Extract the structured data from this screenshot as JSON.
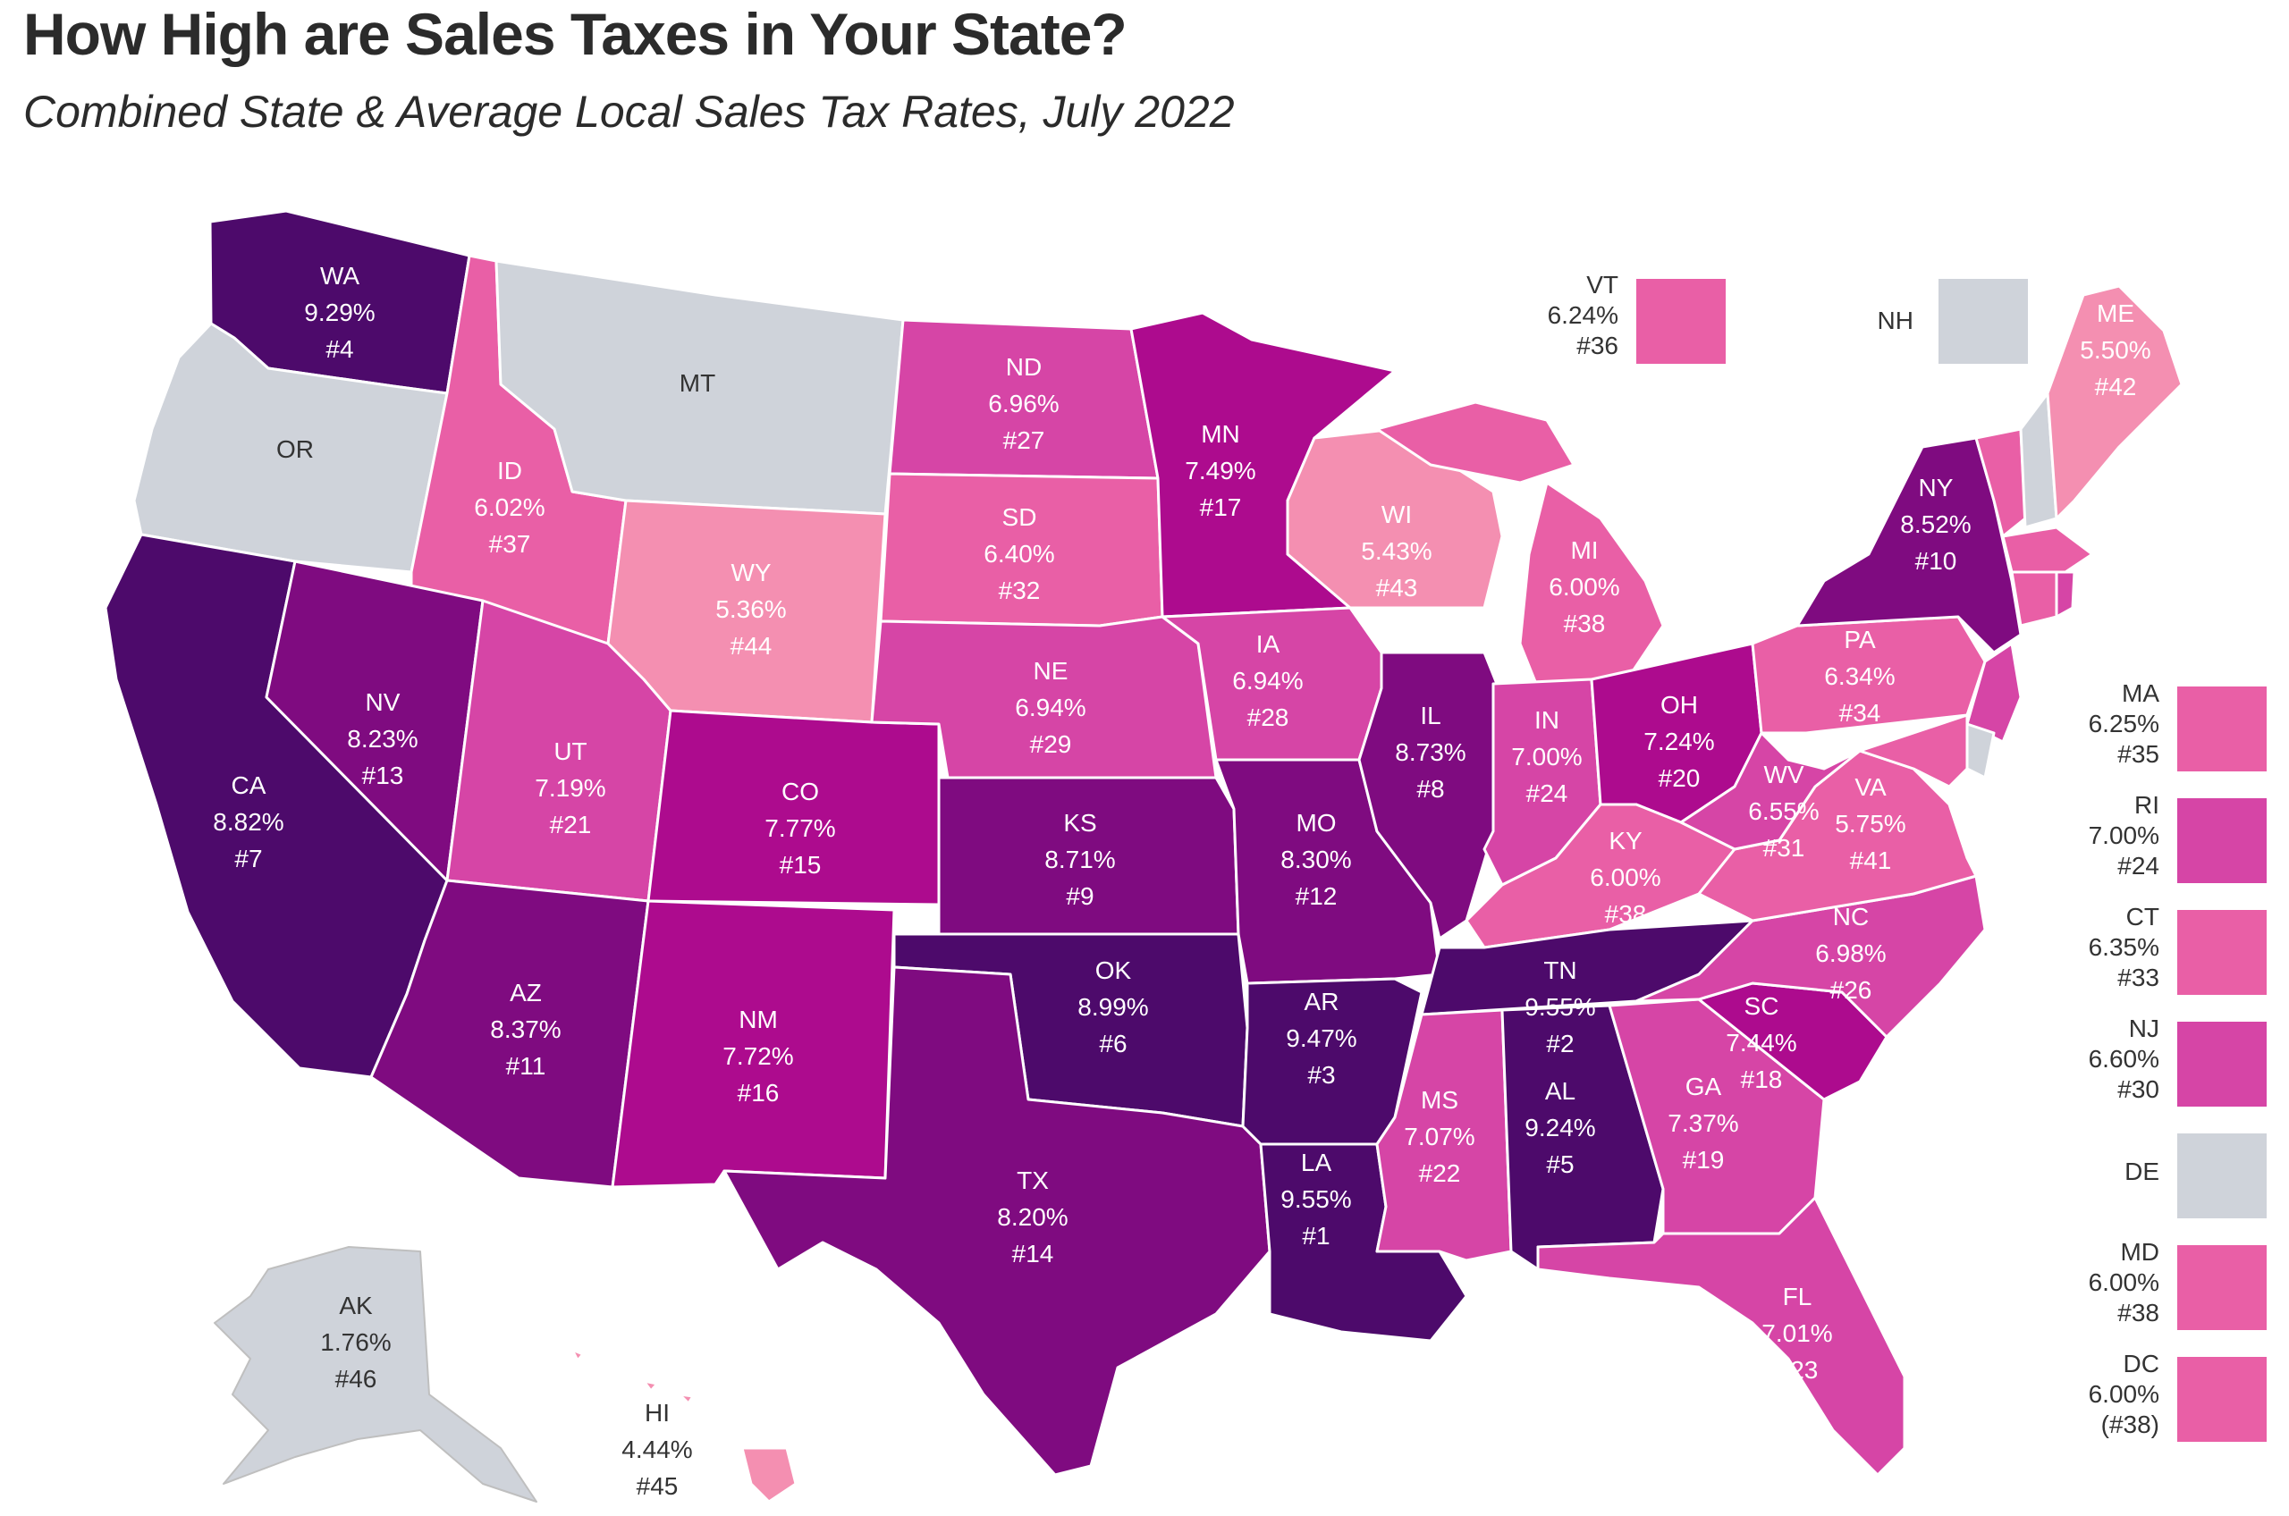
{
  "title": "How High are Sales Taxes in Your State?",
  "subtitle": "Combined State & Average Local Sales Tax Rates, July 2022",
  "colors": {
    "none": "#cfd3da",
    "c1": "#f48fb1",
    "c2": "#e95fa6",
    "c3": "#d645a6",
    "c4": "#ad0b8e",
    "c5": "#7f0b80",
    "c6": "#4d0a6b"
  },
  "states": [
    {
      "id": "WA",
      "name": "WA",
      "rate": "9.29%",
      "rank": "#4",
      "level": "c6"
    },
    {
      "id": "OR",
      "name": "OR",
      "rate": "",
      "rank": "",
      "level": "none"
    },
    {
      "id": "CA",
      "name": "CA",
      "rate": "8.82%",
      "rank": "#7",
      "level": "c6"
    },
    {
      "id": "ID",
      "name": "ID",
      "rate": "6.02%",
      "rank": "#37",
      "level": "c2"
    },
    {
      "id": "NV",
      "name": "NV",
      "rate": "8.23%",
      "rank": "#13",
      "level": "c5"
    },
    {
      "id": "MT",
      "name": "MT",
      "rate": "",
      "rank": "",
      "level": "none"
    },
    {
      "id": "WY",
      "name": "WY",
      "rate": "5.36%",
      "rank": "#44",
      "level": "c1"
    },
    {
      "id": "UT",
      "name": "UT",
      "rate": "7.19%",
      "rank": "#21",
      "level": "c3"
    },
    {
      "id": "AZ",
      "name": "AZ",
      "rate": "8.37%",
      "rank": "#11",
      "level": "c5"
    },
    {
      "id": "CO",
      "name": "CO",
      "rate": "7.77%",
      "rank": "#15",
      "level": "c4"
    },
    {
      "id": "NM",
      "name": "NM",
      "rate": "7.72%",
      "rank": "#16",
      "level": "c4"
    },
    {
      "id": "ND",
      "name": "ND",
      "rate": "6.96%",
      "rank": "#27",
      "level": "c3"
    },
    {
      "id": "SD",
      "name": "SD",
      "rate": "6.40%",
      "rank": "#32",
      "level": "c2"
    },
    {
      "id": "NE",
      "name": "NE",
      "rate": "6.94%",
      "rank": "#29",
      "level": "c3"
    },
    {
      "id": "KS",
      "name": "KS",
      "rate": "8.71%",
      "rank": "#9",
      "level": "c5"
    },
    {
      "id": "OK",
      "name": "OK",
      "rate": "8.99%",
      "rank": "#6",
      "level": "c6"
    },
    {
      "id": "TX",
      "name": "TX",
      "rate": "8.20%",
      "rank": "#14",
      "level": "c5"
    },
    {
      "id": "MN",
      "name": "MN",
      "rate": "7.49%",
      "rank": "#17",
      "level": "c4"
    },
    {
      "id": "IA",
      "name": "IA",
      "rate": "6.94%",
      "rank": "#28",
      "level": "c3"
    },
    {
      "id": "MO",
      "name": "MO",
      "rate": "8.30%",
      "rank": "#12",
      "level": "c5"
    },
    {
      "id": "AR",
      "name": "AR",
      "rate": "9.47%",
      "rank": "#3",
      "level": "c6"
    },
    {
      "id": "LA",
      "name": "LA",
      "rate": "9.55%",
      "rank": "#1",
      "level": "c6"
    },
    {
      "id": "WI",
      "name": "WI",
      "rate": "5.43%",
      "rank": "#43",
      "level": "c1"
    },
    {
      "id": "IL",
      "name": "IL",
      "rate": "8.73%",
      "rank": "#8",
      "level": "c5"
    },
    {
      "id": "MI",
      "name": "MI",
      "rate": "6.00%",
      "rank": "#38",
      "level": "c2"
    },
    {
      "id": "IN",
      "name": "IN",
      "rate": "7.00%",
      "rank": "#24",
      "level": "c3"
    },
    {
      "id": "OH",
      "name": "OH",
      "rate": "7.24%",
      "rank": "#20",
      "level": "c4"
    },
    {
      "id": "KY",
      "name": "KY",
      "rate": "6.00%",
      "rank": "#38",
      "level": "c2"
    },
    {
      "id": "TN",
      "name": "TN",
      "rate": "9.55%",
      "rank": "#2",
      "level": "c6"
    },
    {
      "id": "MS",
      "name": "MS",
      "rate": "7.07%",
      "rank": "#22",
      "level": "c3"
    },
    {
      "id": "AL",
      "name": "AL",
      "rate": "9.24%",
      "rank": "#5",
      "level": "c6"
    },
    {
      "id": "GA",
      "name": "GA",
      "rate": "7.37%",
      "rank": "#19",
      "level": "c3"
    },
    {
      "id": "FL",
      "name": "FL",
      "rate": "7.01%",
      "rank": "#23",
      "level": "c3"
    },
    {
      "id": "SC",
      "name": "SC",
      "rate": "7.44%",
      "rank": "#18",
      "level": "c4"
    },
    {
      "id": "NC",
      "name": "NC",
      "rate": "6.98%",
      "rank": "#26",
      "level": "c3"
    },
    {
      "id": "VA",
      "name": "VA",
      "rate": "5.75%",
      "rank": "#41",
      "level": "c2"
    },
    {
      "id": "WV",
      "name": "WV",
      "rate": "6.55%",
      "rank": "#31",
      "level": "c3"
    },
    {
      "id": "PA",
      "name": "PA",
      "rate": "6.34%",
      "rank": "#34",
      "level": "c2"
    },
    {
      "id": "NY",
      "name": "NY",
      "rate": "8.52%",
      "rank": "#10",
      "level": "c5"
    },
    {
      "id": "ME",
      "name": "ME",
      "rate": "5.50%",
      "rank": "#42",
      "level": "c1"
    },
    {
      "id": "AK",
      "name": "AK",
      "rate": "1.76%",
      "rank": "#46",
      "level": "none"
    },
    {
      "id": "HI",
      "name": "HI",
      "rate": "4.44%",
      "rank": "#45",
      "level": "c1"
    }
  ],
  "small_states": [
    {
      "id": "VT",
      "name": "VT",
      "rate": "6.24%",
      "rank": "#36",
      "level": "c2"
    },
    {
      "id": "NH",
      "name": "NH",
      "rate": "",
      "rank": "",
      "level": "none"
    },
    {
      "id": "MA",
      "name": "MA",
      "rate": "6.25%",
      "rank": "#35",
      "level": "c2"
    },
    {
      "id": "RI",
      "name": "RI",
      "rate": "7.00%",
      "rank": "#24",
      "level": "c3"
    },
    {
      "id": "CT",
      "name": "CT",
      "rate": "6.35%",
      "rank": "#33",
      "level": "c2"
    },
    {
      "id": "NJ",
      "name": "NJ",
      "rate": "6.60%",
      "rank": "#30",
      "level": "c3"
    },
    {
      "id": "DE",
      "name": "DE",
      "rate": "",
      "rank": "",
      "level": "none"
    },
    {
      "id": "MD",
      "name": "MD",
      "rate": "6.00%",
      "rank": "#38",
      "level": "c2"
    },
    {
      "id": "DC",
      "name": "DC",
      "rate": "6.00%",
      "rank": "(#38)",
      "level": "c2"
    }
  ]
}
